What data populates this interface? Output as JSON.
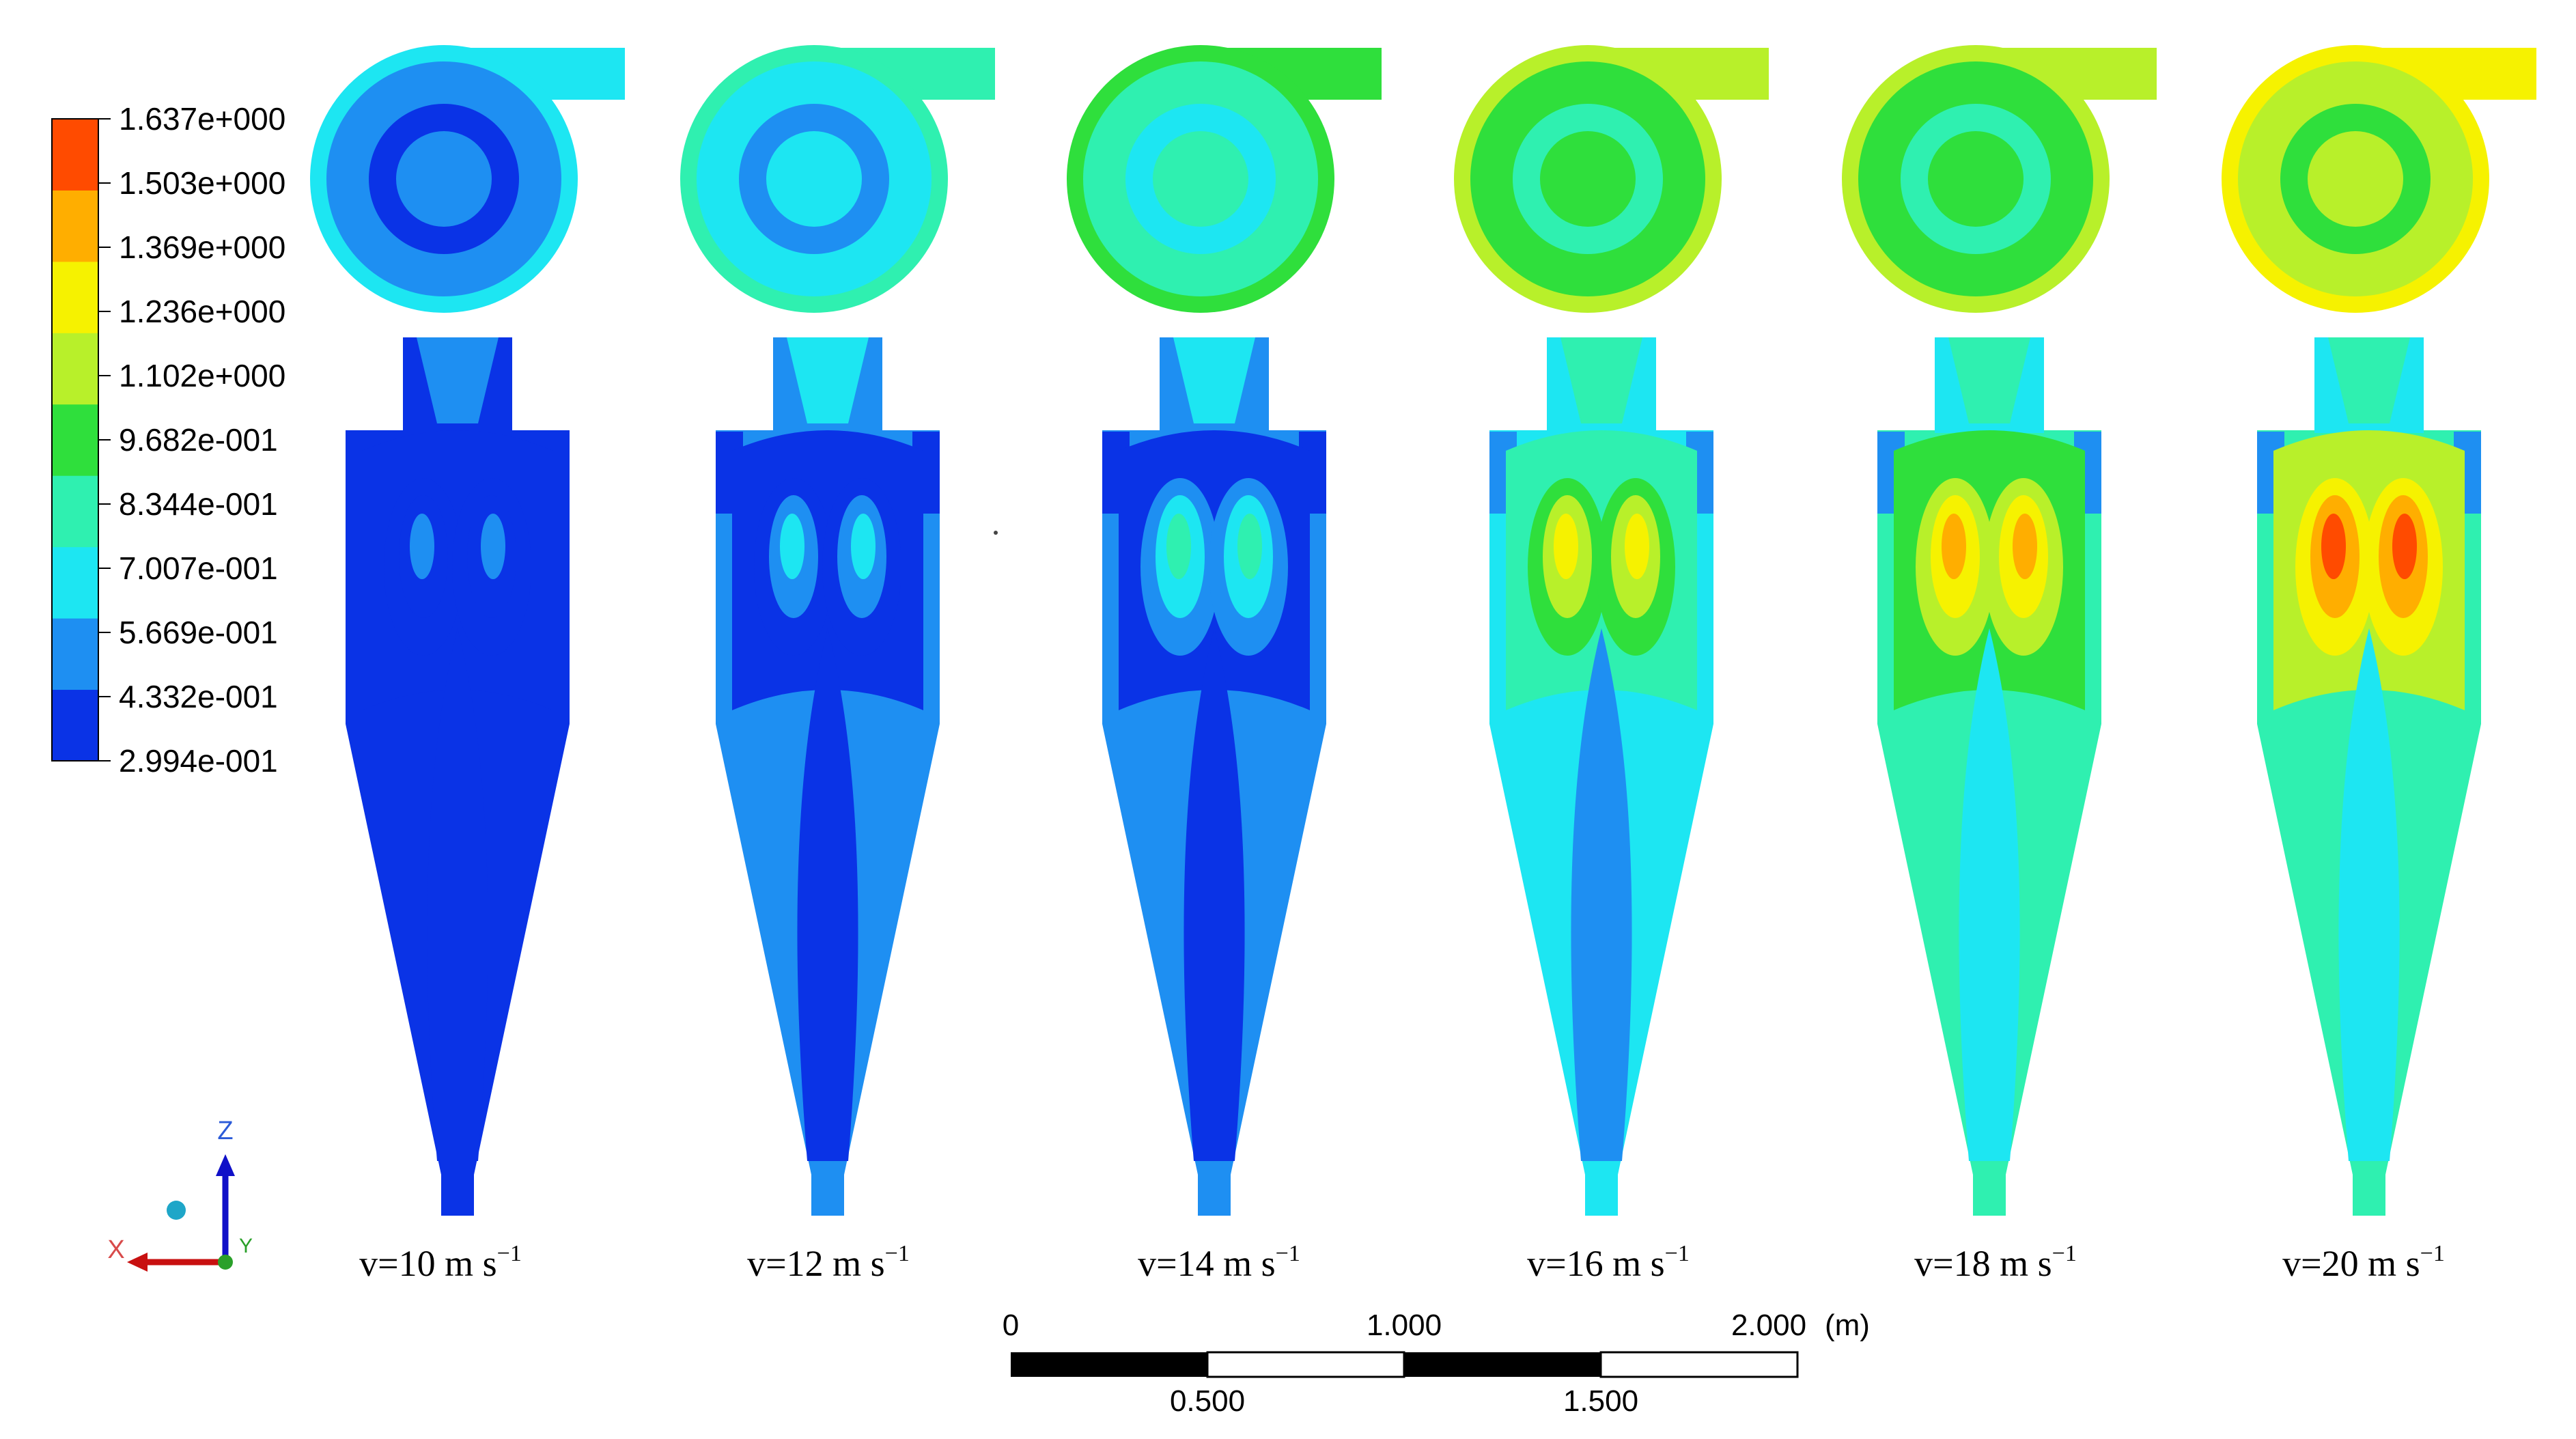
{
  "legend": {
    "colors": [
      "#0a33e6",
      "#1e8ff2",
      "#1de6f2",
      "#2ff0b0",
      "#2fdf3c",
      "#b8f02a",
      "#f6f200",
      "#ffae00",
      "#ff4b00"
    ],
    "labels": [
      "2.994e-001",
      "4.332e-001",
      "5.669e-001",
      "7.007e-001",
      "8.344e-001",
      "9.682e-001",
      "1.102e+000",
      "1.236e+000",
      "1.369e+000",
      "1.503e+000",
      "1.637e+000"
    ]
  },
  "cases": [
    {
      "label": "v=10 m s",
      "sup": "−1",
      "levels": [
        1,
        0,
        0,
        0,
        1
      ]
    },
    {
      "label": "v=12 m s",
      "sup": "−1",
      "levels": [
        2,
        1,
        1,
        0,
        2
      ]
    },
    {
      "label": "v=14 m s",
      "sup": "−1",
      "levels": [
        3,
        1,
        1,
        0,
        3
      ]
    },
    {
      "label": "v=16 m s",
      "sup": "−1",
      "levels": [
        4,
        2,
        2,
        1,
        6
      ]
    },
    {
      "label": "v=18 m s",
      "sup": "−1",
      "levels": [
        4,
        3,
        2,
        1,
        7
      ]
    },
    {
      "label": "v=20 m s",
      "sup": "−1",
      "levels": [
        5,
        3,
        2,
        1,
        8
      ]
    }
  ],
  "scale_bar": {
    "top_labels": [
      "0",
      "1.000",
      "2.000"
    ],
    "unit": "(m)",
    "bottom_labels": [
      "0.500",
      "1.500"
    ]
  },
  "axes": {
    "z": "Z",
    "x": "X",
    "y": "Y"
  }
}
